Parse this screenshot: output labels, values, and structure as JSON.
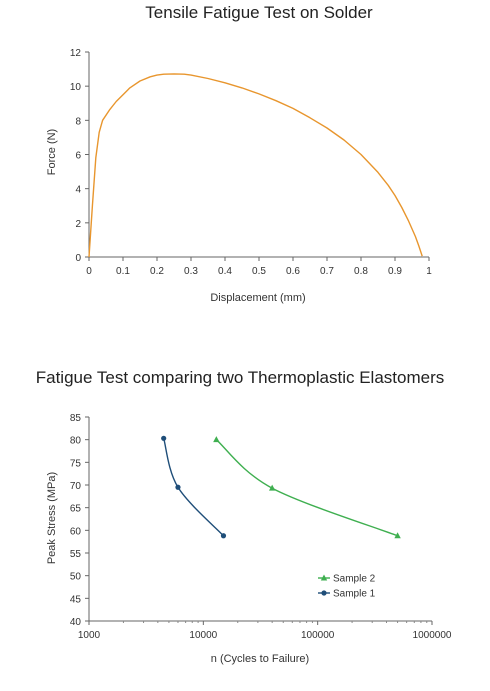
{
  "chart_data": [
    {
      "type": "line",
      "title": "Tensile Fatigue Test on Solder",
      "xlabel": "Displacement (mm)",
      "ylabel": "Force (N)",
      "xlim": [
        0,
        1
      ],
      "ylim": [
        0,
        12
      ],
      "xticks": [
        "0",
        "0.1",
        "0.2",
        "0.3",
        "0.4",
        "0.5",
        "0.6",
        "0.7",
        "0.8",
        "0.9",
        "1"
      ],
      "yticks": [
        "0",
        "2",
        "4",
        "6",
        "8",
        "10",
        "12"
      ],
      "grid": false,
      "series": [
        {
          "color": "#E8962E",
          "x": [
            0,
            0.01,
            0.02,
            0.03,
            0.04,
            0.06,
            0.08,
            0.1,
            0.12,
            0.15,
            0.18,
            0.2,
            0.22,
            0.25,
            0.28,
            0.3,
            0.35,
            0.4,
            0.45,
            0.5,
            0.55,
            0.6,
            0.65,
            0.7,
            0.75,
            0.8,
            0.85,
            0.88,
            0.9,
            0.92,
            0.94,
            0.96,
            0.97,
            0.98
          ],
          "y": [
            0,
            3.0,
            5.8,
            7.3,
            8.0,
            8.6,
            9.1,
            9.5,
            9.9,
            10.3,
            10.55,
            10.65,
            10.7,
            10.72,
            10.7,
            10.65,
            10.45,
            10.2,
            9.9,
            9.55,
            9.15,
            8.7,
            8.15,
            7.55,
            6.85,
            6.0,
            4.95,
            4.2,
            3.6,
            2.9,
            2.1,
            1.2,
            0.65,
            0.05
          ]
        }
      ]
    },
    {
      "type": "line",
      "title": "Fatigue Test comparing two Thermoplastic Elastomers",
      "xlabel": "n (Cycles to Failure)",
      "ylabel": "Peak Stress (MPa)",
      "xscale": "log",
      "xlim": [
        1000,
        1000000
      ],
      "ylim": [
        40,
        85
      ],
      "xticks": [
        "1000",
        "10000",
        "100000",
        "1000000"
      ],
      "yticks": [
        "40",
        "45",
        "50",
        "55",
        "60",
        "65",
        "70",
        "75",
        "80",
        "85"
      ],
      "grid": false,
      "legend_position": "lower-right",
      "series": [
        {
          "name": "Sample 2",
          "color": "#3FAF50",
          "marker": "triangle",
          "x": [
            13000,
            40000,
            500000
          ],
          "y": [
            80,
            69.3,
            58.8
          ]
        },
        {
          "name": "Sample 1",
          "color": "#1F4E79",
          "marker": "circle",
          "x": [
            4500,
            6000,
            15000
          ],
          "y": [
            80.3,
            69.5,
            58.8
          ]
        }
      ]
    }
  ]
}
